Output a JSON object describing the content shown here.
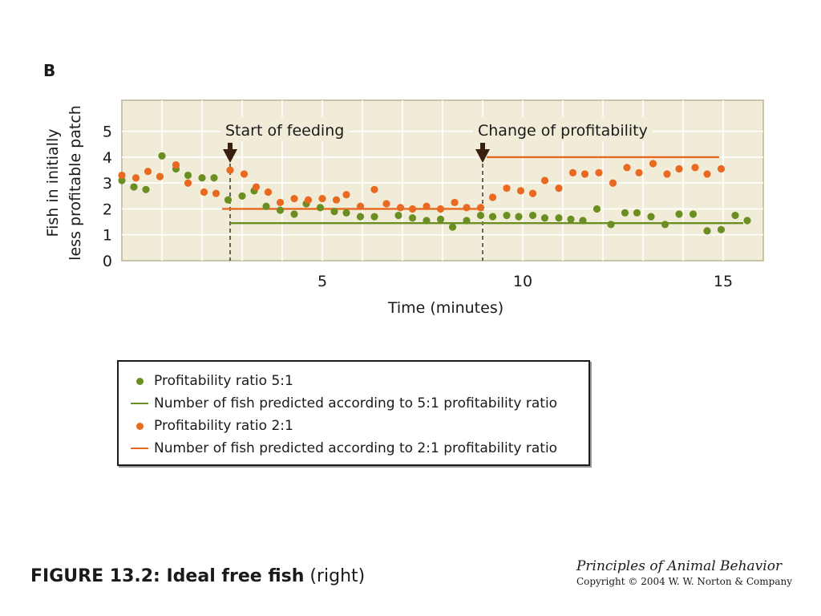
{
  "panel_label": "B",
  "colors": {
    "green": "#6b8e23",
    "orange": "#e8691f",
    "plot_bg": "#f1ecd8",
    "grid": "#ffffff",
    "frame": "#c9c3a9",
    "arrow": "#3a1f0e"
  },
  "chart_data": {
    "type": "scatter",
    "xlabel": "Time (minutes)",
    "ylabel_lines": [
      "Fish in initially",
      "less profitable patch"
    ],
    "xlim": [
      0,
      16
    ],
    "ylim": [
      0,
      6.2
    ],
    "x_ticks": [
      5,
      10,
      15
    ],
    "y_ticks": [
      0,
      1,
      2,
      3,
      4,
      5
    ],
    "grid": true,
    "series": [
      {
        "name": "Profitability ratio 5:1",
        "kind": "points",
        "color": "#6b8e23",
        "points": [
          [
            0,
            3.1
          ],
          [
            0.3,
            2.85
          ],
          [
            0.6,
            2.75
          ],
          [
            1.0,
            4.05
          ],
          [
            1.35,
            3.55
          ],
          [
            1.65,
            3.3
          ],
          [
            2.0,
            3.2
          ],
          [
            2.3,
            3.2
          ],
          [
            2.65,
            2.35
          ],
          [
            3.0,
            2.5
          ],
          [
            3.3,
            2.7
          ],
          [
            3.6,
            2.1
          ],
          [
            3.95,
            1.95
          ],
          [
            4.3,
            1.8
          ],
          [
            4.6,
            2.2
          ],
          [
            4.95,
            2.05
          ],
          [
            5.3,
            1.9
          ],
          [
            5.6,
            1.85
          ],
          [
            5.95,
            1.7
          ],
          [
            6.3,
            1.7
          ],
          [
            6.9,
            1.75
          ],
          [
            7.25,
            1.65
          ],
          [
            7.6,
            1.55
          ],
          [
            7.95,
            1.6
          ],
          [
            8.25,
            1.3
          ],
          [
            8.6,
            1.55
          ],
          [
            8.95,
            1.75
          ],
          [
            9.25,
            1.7
          ],
          [
            9.6,
            1.75
          ],
          [
            9.9,
            1.7
          ],
          [
            10.25,
            1.75
          ],
          [
            10.55,
            1.65
          ],
          [
            10.9,
            1.65
          ],
          [
            11.2,
            1.6
          ],
          [
            11.5,
            1.55
          ],
          [
            11.85,
            2.0
          ],
          [
            12.2,
            1.4
          ],
          [
            12.55,
            1.85
          ],
          [
            12.85,
            1.85
          ],
          [
            13.2,
            1.7
          ],
          [
            13.55,
            1.4
          ],
          [
            13.9,
            1.8
          ],
          [
            14.25,
            1.8
          ],
          [
            14.6,
            1.15
          ],
          [
            14.95,
            1.2
          ],
          [
            15.3,
            1.75
          ],
          [
            15.6,
            1.55
          ]
        ]
      },
      {
        "name": "Number of fish predicted according to 5:1 profitability ratio",
        "kind": "line",
        "color": "#6b8e23",
        "points": [
          [
            2.7,
            1.45
          ],
          [
            15.5,
            1.45
          ]
        ]
      },
      {
        "name": "Profitability ratio 2:1",
        "kind": "points",
        "color": "#e8691f",
        "points": [
          [
            0,
            3.3
          ],
          [
            0.35,
            3.2
          ],
          [
            0.65,
            3.45
          ],
          [
            0.95,
            3.25
          ],
          [
            1.35,
            3.7
          ],
          [
            1.65,
            3.0
          ],
          [
            2.05,
            2.65
          ],
          [
            2.35,
            2.6
          ],
          [
            2.7,
            3.5
          ],
          [
            3.05,
            3.35
          ],
          [
            3.35,
            2.85
          ],
          [
            3.65,
            2.65
          ],
          [
            3.95,
            2.25
          ],
          [
            4.3,
            2.4
          ],
          [
            4.65,
            2.35
          ],
          [
            5.0,
            2.4
          ],
          [
            5.35,
            2.35
          ],
          [
            5.6,
            2.55
          ],
          [
            5.95,
            2.1
          ],
          [
            6.3,
            2.75
          ],
          [
            6.6,
            2.2
          ],
          [
            6.95,
            2.05
          ],
          [
            7.25,
            2.0
          ],
          [
            7.6,
            2.1
          ],
          [
            7.95,
            2.0
          ],
          [
            8.3,
            2.25
          ],
          [
            8.6,
            2.05
          ],
          [
            8.95,
            2.05
          ],
          [
            9.25,
            2.45
          ],
          [
            9.6,
            2.8
          ],
          [
            9.95,
            2.7
          ],
          [
            10.25,
            2.6
          ],
          [
            10.55,
            3.1
          ],
          [
            10.9,
            2.8
          ],
          [
            11.25,
            3.4
          ],
          [
            11.55,
            3.35
          ],
          [
            11.9,
            3.4
          ],
          [
            12.25,
            3.0
          ],
          [
            12.6,
            3.6
          ],
          [
            12.9,
            3.4
          ],
          [
            13.25,
            3.75
          ],
          [
            13.6,
            3.35
          ],
          [
            13.9,
            3.55
          ],
          [
            14.3,
            3.6
          ],
          [
            14.6,
            3.35
          ],
          [
            14.95,
            3.55
          ]
        ]
      },
      {
        "name": "Number of fish predicted according to 2:1 profitability ratio",
        "kind": "line",
        "color": "#e8691f",
        "segments": [
          [
            [
              2.5,
              2.0
            ],
            [
              9.0,
              2.0
            ]
          ],
          [
            [
              9.1,
              4.0
            ],
            [
              14.9,
              4.0
            ]
          ]
        ]
      }
    ],
    "annotations": [
      {
        "text": "Start of feeding",
        "x": 2.7
      },
      {
        "text": "Change of profitability",
        "x": 9.0
      }
    ]
  },
  "legend": {
    "items": [
      {
        "label": "Profitability ratio 5:1",
        "shape": "dot",
        "color": "#6b8e23"
      },
      {
        "label": "Number of fish predicted according to 5:1 profitability ratio",
        "shape": "line",
        "color": "#6b8e23"
      },
      {
        "label": "Profitability ratio 2:1",
        "shape": "dot",
        "color": "#e8691f"
      },
      {
        "label": "Number of fish predicted according to 2:1 profitability ratio",
        "shape": "line",
        "color": "#e8691f"
      }
    ]
  },
  "caption": {
    "bold": "FIGURE 13.2: Ideal free fish",
    "normal": "(right)"
  },
  "source": {
    "title": "Principles of Animal Behavior",
    "copyright": "Copyright © 2004 W. W. Norton & Company"
  }
}
